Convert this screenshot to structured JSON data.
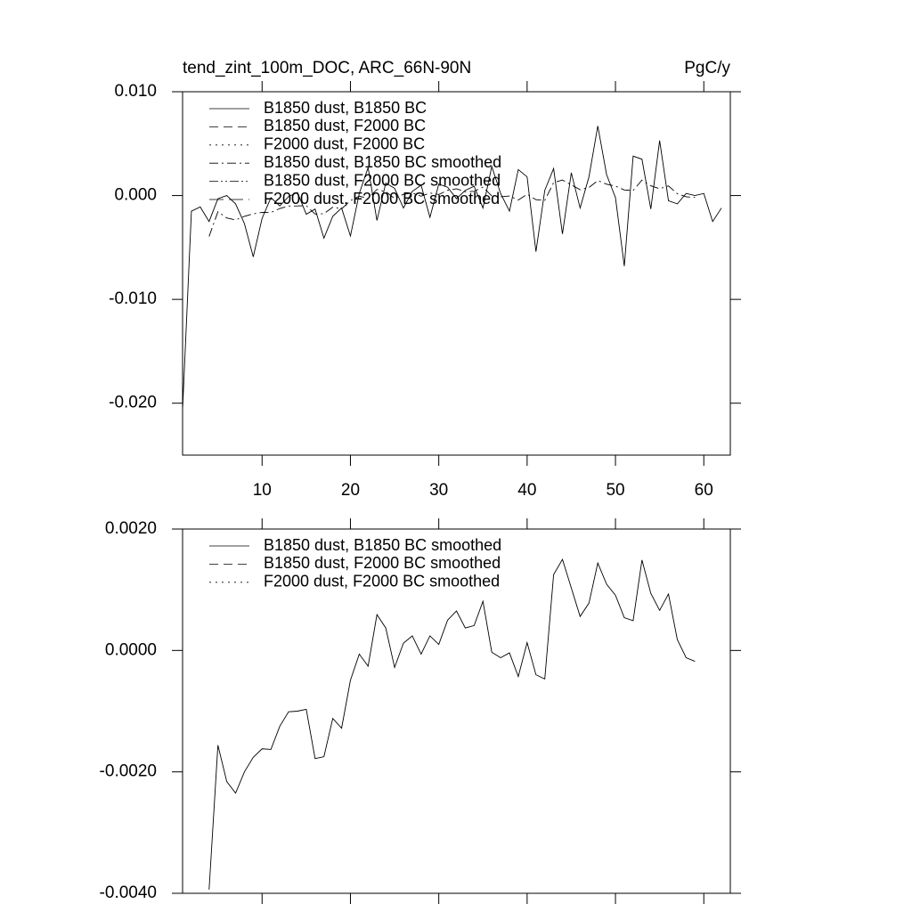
{
  "chart_data": [
    {
      "type": "line",
      "title": "tend_zint_100m_DOC, ARC_66N-90N",
      "unit_label": "PgC/y",
      "x": [
        1,
        2,
        3,
        4,
        5,
        6,
        7,
        8,
        9,
        10,
        11,
        12,
        13,
        14,
        15,
        16,
        17,
        18,
        19,
        20,
        21,
        22,
        23,
        24,
        25,
        26,
        27,
        28,
        29,
        30,
        31,
        32,
        33,
        34,
        35,
        36,
        37,
        38,
        39,
        40,
        41,
        42,
        43,
        44,
        45,
        46,
        47,
        48,
        49,
        50,
        51,
        52,
        53,
        54,
        55,
        56,
        57,
        58,
        59,
        60,
        61,
        62
      ],
      "xlim": [
        1,
        63
      ],
      "xticks": [
        10,
        20,
        30,
        40,
        50,
        60
      ],
      "ylim": [
        -0.025,
        0.01
      ],
      "yticks": [
        {
          "value": 0.01,
          "label": "0.010"
        },
        {
          "value": 0,
          "label": "0.000"
        },
        {
          "value": -0.01,
          "label": "-0.010"
        },
        {
          "value": -0.02,
          "label": "-0.020"
        }
      ],
      "series": [
        {
          "name": "B1850 dust, B1850 BC",
          "color": "#000000",
          "dash": "solid",
          "values": [
            -0.0206,
            -0.0015,
            -0.0011,
            -0.0025,
            -0.0003,
            0.0,
            -0.0008,
            -0.0027,
            -0.0059,
            -0.0022,
            -0.0002,
            -0.001,
            -0.0001,
            0.0003,
            -0.0018,
            -0.0013,
            -0.0041,
            -0.002,
            -0.0012,
            -0.0039,
            0.0002,
            0.0027,
            -0.0024,
            0.0012,
            0.0007,
            -0.0012,
            0.0004,
            0.001,
            -0.0021,
            0.0011,
            0.0008,
            -0.0003,
            0.0005,
            0.0009,
            -0.0012,
            0.0028,
            0.0002,
            -0.0015,
            0.0025,
            0.0018,
            -0.0054,
            0.0005,
            0.0026,
            -0.0037,
            0.0022,
            -0.0012,
            0.0018,
            0.0067,
            0.002,
            -0.0002,
            -0.0068,
            0.0038,
            0.0035,
            -0.0013,
            0.0053,
            -0.0005,
            -0.0008,
            0.0002,
            0.0,
            0.0002,
            -0.0025,
            -0.0012
          ]
        },
        {
          "name": "B1850 dust, F2000 BC",
          "color": "#000000",
          "dash": "dashed"
        },
        {
          "name": "F2000 dust, F2000 BC",
          "color": "#000000",
          "dash": "dotted"
        },
        {
          "name": "B1850 dust, B1850 BC smoothed",
          "color": "#000000",
          "dash": "dashdot",
          "x": [
            4,
            5,
            6,
            7,
            8,
            9,
            10,
            11,
            12,
            13,
            14,
            15,
            16,
            17,
            18,
            19,
            20,
            21,
            22,
            23,
            24,
            25,
            26,
            27,
            28,
            29,
            30,
            31,
            32,
            33,
            34,
            35,
            36,
            37,
            38,
            39,
            40,
            41,
            42,
            43,
            44,
            45,
            46,
            47,
            48,
            49,
            50,
            51,
            52,
            53,
            54,
            55,
            56,
            57,
            58,
            59
          ],
          "values": [
            -0.00394,
            -0.00156,
            -0.00216,
            -0.00235,
            -0.002,
            -0.00176,
            -0.00162,
            -0.00163,
            -0.00125,
            -0.00101,
            -0.001,
            -0.00097,
            -0.00178,
            -0.00175,
            -0.00112,
            -0.00128,
            -0.00049,
            -6e-05,
            -0.00026,
            0.00059,
            0.00037,
            -0.00028,
            0.00012,
            0.00024,
            -6e-05,
            0.00024,
            0.0001,
            0.0005,
            0.00065,
            0.00037,
            0.00041,
            0.00081,
            -3e-05,
            -0.00012,
            -4e-05,
            -0.00043,
            0.00013,
            -0.0004,
            -0.00047,
            0.00125,
            0.0015,
            0.00103,
            0.00056,
            0.00078,
            0.00144,
            0.00109,
            0.00091,
            0.00054,
            0.00049,
            0.00149,
            0.00094,
            0.00066,
            0.00093,
            0.00018,
            -0.00012,
            -0.00018
          ]
        },
        {
          "name": "B1850 dust, F2000 BC smoothed",
          "color": "#000000",
          "dash": "dashdotdot"
        },
        {
          "name": "F2000 dust, F2000 BC smoothed",
          "color": "#000000",
          "dash": "longdash"
        }
      ]
    },
    {
      "type": "line",
      "xlim": [
        1,
        63
      ],
      "xticks": [
        10,
        20,
        30,
        40,
        50,
        60
      ],
      "ylim": [
        -0.004,
        0.002
      ],
      "yticks": [
        {
          "value": 0.002,
          "label": "0.0020"
        },
        {
          "value": 0,
          "label": "0.0000"
        },
        {
          "value": -0.002,
          "label": "-0.0020"
        },
        {
          "value": -0.004,
          "label": "-0.0040"
        }
      ],
      "series": [
        {
          "name": "B1850 dust, B1850 BC smoothed",
          "color": "#000000",
          "dash": "solid",
          "x": [
            4,
            5,
            6,
            7,
            8,
            9,
            10,
            11,
            12,
            13,
            14,
            15,
            16,
            17,
            18,
            19,
            20,
            21,
            22,
            23,
            24,
            25,
            26,
            27,
            28,
            29,
            30,
            31,
            32,
            33,
            34,
            35,
            36,
            37,
            38,
            39,
            40,
            41,
            42,
            43,
            44,
            45,
            46,
            47,
            48,
            49,
            50,
            51,
            52,
            53,
            54,
            55,
            56,
            57,
            58,
            59
          ],
          "values": [
            -0.00394,
            -0.00156,
            -0.00216,
            -0.00235,
            -0.002,
            -0.00176,
            -0.00162,
            -0.00163,
            -0.00125,
            -0.00101,
            -0.001,
            -0.00097,
            -0.00178,
            -0.00175,
            -0.00112,
            -0.00128,
            -0.00049,
            -6e-05,
            -0.00026,
            0.00059,
            0.00037,
            -0.00028,
            0.00012,
            0.00024,
            -6e-05,
            0.00024,
            0.0001,
            0.0005,
            0.00065,
            0.00037,
            0.00041,
            0.00081,
            -3e-05,
            -0.00012,
            -4e-05,
            -0.00043,
            0.00013,
            -0.0004,
            -0.00047,
            0.00125,
            0.0015,
            0.00103,
            0.00056,
            0.00078,
            0.00144,
            0.00109,
            0.00091,
            0.00054,
            0.00049,
            0.00149,
            0.00094,
            0.00066,
            0.00093,
            0.00018,
            -0.00012,
            -0.00018
          ]
        },
        {
          "name": "B1850 dust, F2000 BC smoothed",
          "color": "#000000",
          "dash": "dashed"
        },
        {
          "name": "F2000 dust, F2000 BC smoothed",
          "color": "#000000",
          "dash": "dotted"
        }
      ]
    }
  ]
}
